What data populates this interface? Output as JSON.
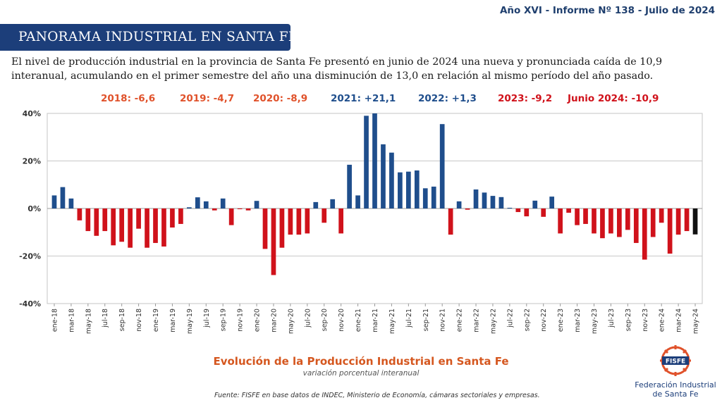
{
  "header": {
    "report_id": "Año XVI - Informe Nº 138 - Julio de 2024",
    "banner_title": "PANORAMA INDUSTRIAL EN SANTA FE"
  },
  "intro_text": "El nivel de producción industrial en la provincia de Santa Fe presentó en junio de 2024 una nueva y pronunciada caída de 10,9 interanual, acumulando en el primer semestre del año una disminución de 13,0 en relación al mismo período del año pasado.",
  "summary": [
    {
      "text": "2018: -6,6",
      "color": "#e0522b"
    },
    {
      "text": "2019: -4,7",
      "color": "#e0522b"
    },
    {
      "text": "2020: -8,9",
      "color": "#e0522b"
    },
    {
      "text": "2021: +21,1",
      "color": "#1f4e8c"
    },
    {
      "text": "2022: +1,3",
      "color": "#1f4e8c"
    },
    {
      "text": "2023: -9,2",
      "color": "#d0121b"
    },
    {
      "text": "Junio 2024: -10,9",
      "color": "#d0121b"
    }
  ],
  "chart_data": {
    "type": "bar",
    "title": "Evolución de la Producción Industrial en Santa Fe",
    "subtitle": "variación porcentual interanual",
    "ylim": [
      -40,
      40
    ],
    "y_ticks": [
      40,
      20,
      0,
      -20,
      -40
    ],
    "y_tick_labels": [
      "40%",
      "20%",
      "0%",
      "-20%",
      "-40%"
    ],
    "grid": "horizontal",
    "colors": {
      "positive": "#1f4e8c",
      "negative": "#d0121b",
      "last": "#111111"
    },
    "x_tick_labels": [
      "ene-18",
      "mar-18",
      "may-18",
      "jul-18",
      "sep-18",
      "nov-18",
      "ene-19",
      "mar-19",
      "may-19",
      "jul-19",
      "sep-19",
      "nov-19",
      "ene-20",
      "mar-20",
      "may-20",
      "jul-20",
      "sep-20",
      "nov-20",
      "ene-21",
      "mar-21",
      "may-21",
      "jul-21",
      "sep-21",
      "nov-21",
      "ene-22",
      "mar-22",
      "may-22",
      "jul-22",
      "sep-22",
      "nov-22",
      "ene-23",
      "mar-23",
      "may-23",
      "jul-23",
      "sep-23",
      "nov-23",
      "ene-24",
      "mar-24",
      "may-24"
    ],
    "values": [
      5.5,
      9.0,
      4.2,
      -5.0,
      -9.5,
      -11.5,
      -9.5,
      -15.5,
      -14.0,
      -16.5,
      -8.5,
      -16.5,
      -14.5,
      -16.0,
      -8.0,
      -6.5,
      0.5,
      4.7,
      3.0,
      -0.8,
      4.2,
      -7.0,
      -0.3,
      -0.8,
      3.2,
      -17.0,
      -28.0,
      -16.5,
      -11.0,
      -11.0,
      -10.5,
      2.7,
      -6.0,
      3.9,
      -10.5,
      18.4,
      5.5,
      39.0,
      40.0,
      27.0,
      23.5,
      15.2,
      15.5,
      16.0,
      8.5,
      9.2,
      35.5,
      -11.0,
      3.0,
      -0.5,
      8.0,
      6.7,
      5.3,
      4.8,
      0.3,
      -1.5,
      -3.3,
      3.3,
      -3.5,
      5.0,
      -10.5,
      -1.8,
      -7.0,
      -6.5,
      -10.5,
      -12.5,
      -10.5,
      -12.0,
      -9.0,
      -14.5,
      -21.5,
      -12.0,
      -6.0,
      -19.0,
      -11.0,
      -9.5,
      -10.9
    ]
  },
  "source": "Fuente: FISFE en base datos de INDEC, Ministerio de Economía, cámaras sectoriales y empresas.",
  "logo": {
    "badge": "FISFE",
    "line1": "Federación Industrial",
    "line2": "de Santa Fe",
    "colors": {
      "primary": "#1c3e7a",
      "accent": "#e0522b"
    }
  }
}
